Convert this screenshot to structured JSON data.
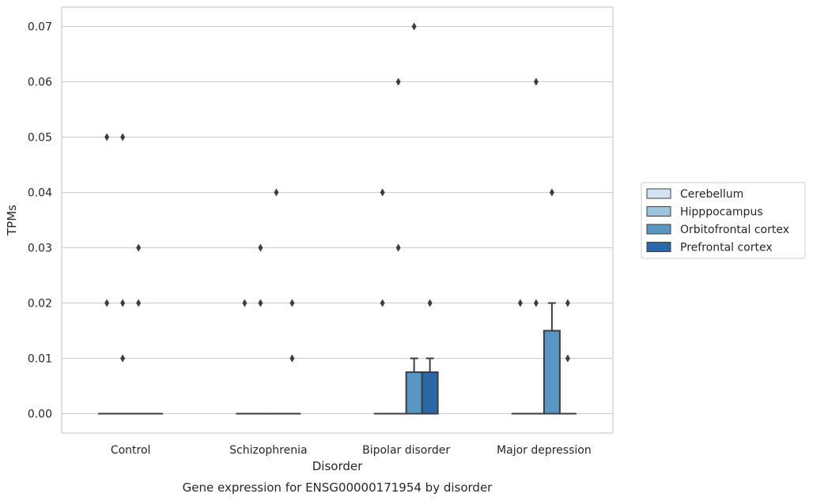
{
  "chart_data": {
    "type": "box",
    "title": "",
    "caption": "Gene expression for ENSG00000171954 by disorder",
    "xlabel": "Disorder",
    "ylabel": "TPMs",
    "ylim": [
      -0.0035,
      0.0735
    ],
    "yticks": [
      0.0,
      0.01,
      0.02,
      0.03,
      0.04,
      0.05,
      0.06,
      0.07
    ],
    "ytick_labels": [
      "0.00",
      "0.01",
      "0.02",
      "0.03",
      "0.04",
      "0.05",
      "0.06",
      "0.07"
    ],
    "grid": "horizontal",
    "legend_position": "right",
    "categories": [
      "Control",
      "Schizophrenia",
      "Bipolar disorder",
      "Major depression"
    ],
    "series": [
      {
        "name": "Cerebellum",
        "color": "#d4e3f2",
        "boxes": [
          {
            "q1": 0,
            "median": 0,
            "q3": 0,
            "whisker_low": 0,
            "whisker_high": 0,
            "outliers": [
              0.02,
              0.05
            ]
          },
          {
            "q1": 0,
            "median": 0,
            "q3": 0,
            "whisker_low": 0,
            "whisker_high": 0,
            "outliers": [
              0.02
            ]
          },
          {
            "q1": 0,
            "median": 0,
            "q3": 0,
            "whisker_low": 0,
            "whisker_high": 0,
            "outliers": [
              0.02,
              0.04
            ]
          },
          {
            "q1": 0,
            "median": 0,
            "q3": 0,
            "whisker_low": 0,
            "whisker_high": 0,
            "outliers": [
              0.02
            ]
          }
        ]
      },
      {
        "name": "Hipppocampus",
        "color": "#9bc4dd",
        "boxes": [
          {
            "q1": 0,
            "median": 0,
            "q3": 0,
            "whisker_low": 0,
            "whisker_high": 0,
            "outliers": [
              0.01,
              0.02,
              0.05
            ]
          },
          {
            "q1": 0,
            "median": 0,
            "q3": 0,
            "whisker_low": 0,
            "whisker_high": 0,
            "outliers": [
              0.02,
              0.03
            ]
          },
          {
            "q1": 0,
            "median": 0,
            "q3": 0,
            "whisker_low": 0,
            "whisker_high": 0,
            "outliers": [
              0.03,
              0.06
            ]
          },
          {
            "q1": 0,
            "median": 0,
            "q3": 0,
            "whisker_low": 0,
            "whisker_high": 0,
            "outliers": [
              0.02,
              0.06
            ]
          }
        ]
      },
      {
        "name": "Orbitofrontal cortex",
        "color": "#5896c4",
        "boxes": [
          {
            "q1": 0,
            "median": 0,
            "q3": 0,
            "whisker_low": 0,
            "whisker_high": 0,
            "outliers": [
              0.02,
              0.03
            ]
          },
          {
            "q1": 0,
            "median": 0,
            "q3": 0,
            "whisker_low": 0,
            "whisker_high": 0,
            "outliers": [
              0.04
            ]
          },
          {
            "q1": 0,
            "median": 0,
            "q3": 0.0075,
            "whisker_low": 0,
            "whisker_high": 0.01,
            "outliers": [
              0.07
            ]
          },
          {
            "q1": 0,
            "median": 0,
            "q3": 0.015,
            "whisker_low": 0,
            "whisker_high": 0.02,
            "outliers": [
              0.04
            ]
          }
        ]
      },
      {
        "name": "Prefrontal cortex",
        "color": "#2a68a8",
        "boxes": [
          {
            "q1": 0,
            "median": 0,
            "q3": 0,
            "whisker_low": 0,
            "whisker_high": 0,
            "outliers": []
          },
          {
            "q1": 0,
            "median": 0,
            "q3": 0,
            "whisker_low": 0,
            "whisker_high": 0,
            "outliers": [
              0.01,
              0.02
            ]
          },
          {
            "q1": 0,
            "median": 0,
            "q3": 0.0075,
            "whisker_low": 0,
            "whisker_high": 0.01,
            "outliers": [
              0.02
            ]
          },
          {
            "q1": 0,
            "median": 0,
            "q3": 0,
            "whisker_low": 0,
            "whisker_high": 0,
            "outliers": [
              0.01,
              0.02
            ]
          }
        ]
      }
    ]
  }
}
